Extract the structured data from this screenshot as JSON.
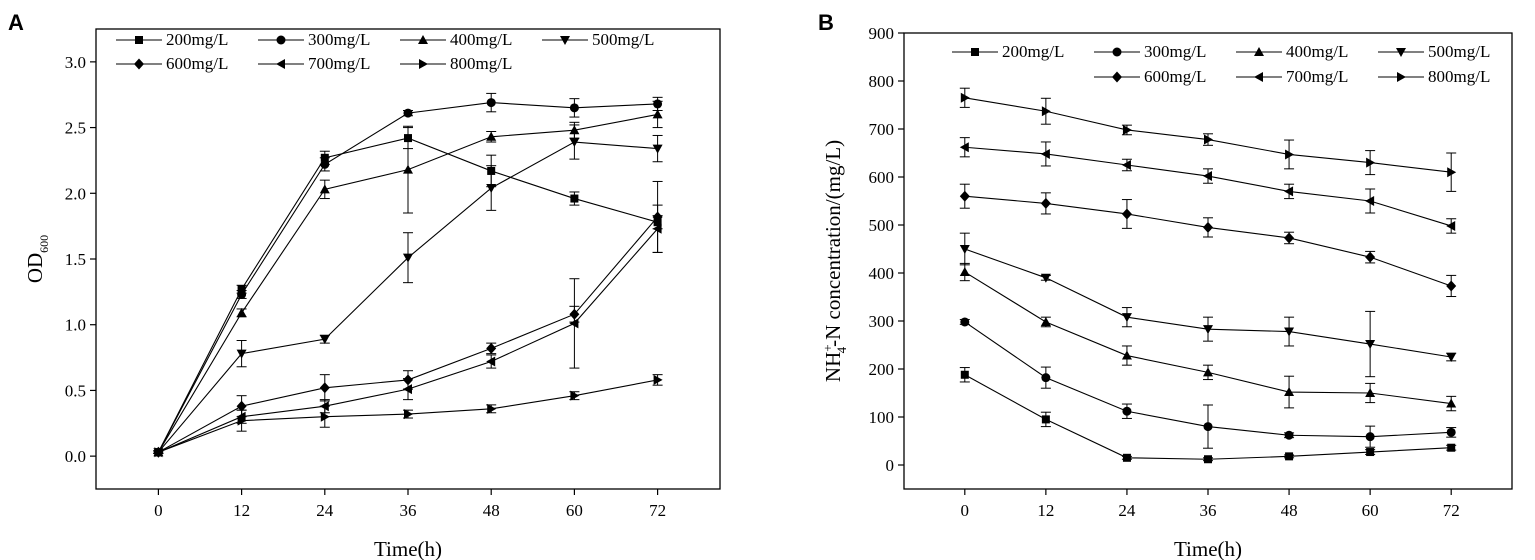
{
  "chart_data": [
    {
      "type": "line",
      "panel": "A",
      "xlabel": "Time(h)",
      "ylabel": "OD",
      "ylabel_sub": "600",
      "x": [
        0,
        12,
        24,
        36,
        48,
        60,
        72
      ],
      "xlim": [
        -9,
        81
      ],
      "ylim": [
        -0.25,
        3.25
      ],
      "yticks": [
        "0.0",
        "0.5",
        "1.0",
        "1.5",
        "2.0",
        "2.5",
        "3.0"
      ],
      "xticks": [
        "0",
        "12",
        "24",
        "36",
        "48",
        "60",
        "72"
      ],
      "legend_position": "top-left",
      "series": [
        {
          "name": "200mg/L",
          "marker": "square",
          "values": [
            0.03,
            1.27,
            2.27,
            2.42,
            2.17,
            1.96,
            1.78
          ],
          "errors": [
            0.01,
            0.03,
            0.05,
            0.08,
            0.12,
            0.05,
            0.05
          ]
        },
        {
          "name": "300mg/L",
          "marker": "circle",
          "values": [
            0.03,
            1.23,
            2.22,
            2.61,
            2.69,
            2.65,
            2.68
          ],
          "errors": [
            0.01,
            0.03,
            0.05,
            0.02,
            0.07,
            0.07,
            0.05
          ]
        },
        {
          "name": "400mg/L",
          "marker": "triangle-up",
          "values": [
            0.03,
            1.09,
            2.03,
            2.18,
            2.43,
            2.48,
            2.6
          ],
          "errors": [
            0.01,
            0.03,
            0.07,
            0.33,
            0.04,
            0.06,
            0.1
          ]
        },
        {
          "name": "500mg/L",
          "marker": "triangle-down",
          "values": [
            0.03,
            0.78,
            0.89,
            1.51,
            2.04,
            2.39,
            2.34
          ],
          "errors": [
            0.01,
            0.1,
            0.03,
            0.19,
            0.17,
            0.13,
            0.1
          ]
        },
        {
          "name": "600mg/L",
          "marker": "diamond",
          "values": [
            0.03,
            0.38,
            0.52,
            0.58,
            0.82,
            1.08,
            1.82
          ],
          "errors": [
            0.01,
            0.08,
            0.1,
            0.07,
            0.04,
            0.06,
            0.27
          ]
        },
        {
          "name": "700mg/L",
          "marker": "triangle-left",
          "values": [
            0.03,
            0.3,
            0.38,
            0.51,
            0.72,
            1.01,
            1.73
          ],
          "errors": [
            0.01,
            0.05,
            0.05,
            0.08,
            0.05,
            0.34,
            0.18
          ]
        },
        {
          "name": "800mg/L",
          "marker": "triangle-right",
          "values": [
            0.03,
            0.27,
            0.3,
            0.32,
            0.36,
            0.46,
            0.58
          ],
          "errors": [
            0.01,
            0.08,
            0.08,
            0.03,
            0.03,
            0.03,
            0.04
          ]
        }
      ]
    },
    {
      "type": "line",
      "panel": "B",
      "xlabel": "Time(h)",
      "ylabel_prefix": "NH",
      "ylabel_sub": "4",
      "ylabel_sup": "+",
      "ylabel_suffix": "-N concentration/(mg/L)",
      "x": [
        0,
        12,
        24,
        36,
        48,
        60,
        72
      ],
      "xlim": [
        -9,
        81
      ],
      "ylim": [
        -50,
        900
      ],
      "yticks": [
        "0",
        "100",
        "200",
        "300",
        "400",
        "500",
        "600",
        "700",
        "800",
        "900"
      ],
      "xticks": [
        "0",
        "12",
        "24",
        "36",
        "48",
        "60",
        "72"
      ],
      "legend_position": "top-right",
      "series": [
        {
          "name": "200mg/L",
          "marker": "square",
          "values": [
            188,
            95,
            15,
            12,
            18,
            27,
            36
          ],
          "errors": [
            15,
            15,
            3,
            3,
            3,
            5,
            5
          ]
        },
        {
          "name": "300mg/L",
          "marker": "circle",
          "values": [
            298,
            182,
            112,
            80,
            62,
            59,
            68
          ],
          "errors": [
            5,
            22,
            15,
            45,
            5,
            22,
            10
          ]
        },
        {
          "name": "400mg/L",
          "marker": "triangle-up",
          "values": [
            402,
            298,
            228,
            193,
            152,
            150,
            128
          ],
          "errors": [
            18,
            10,
            20,
            15,
            33,
            20,
            15
          ]
        },
        {
          "name": "500mg/L",
          "marker": "triangle-down",
          "values": [
            450,
            390,
            308,
            283,
            278,
            252,
            225
          ],
          "errors": [
            33,
            5,
            20,
            25,
            30,
            68,
            8
          ]
        },
        {
          "name": "600mg/L",
          "marker": "diamond",
          "values": [
            560,
            545,
            523,
            495,
            473,
            433,
            373
          ],
          "errors": [
            25,
            22,
            30,
            20,
            12,
            12,
            22
          ]
        },
        {
          "name": "700mg/L",
          "marker": "triangle-left",
          "values": [
            662,
            648,
            625,
            602,
            570,
            550,
            498
          ],
          "errors": [
            20,
            25,
            12,
            15,
            15,
            25,
            15
          ]
        },
        {
          "name": "800mg/L",
          "marker": "triangle-right",
          "values": [
            765,
            737,
            698,
            678,
            647,
            630,
            610
          ],
          "errors": [
            20,
            27,
            10,
            12,
            30,
            25,
            40
          ]
        }
      ]
    }
  ]
}
